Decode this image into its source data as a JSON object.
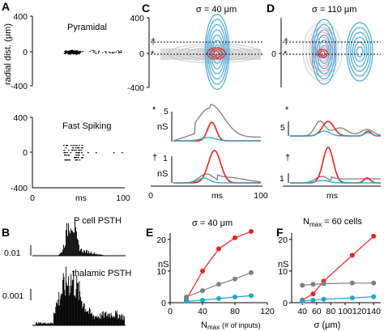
{
  "panels": {
    "A": {
      "letter": "A",
      "title_top": "Pyramidal",
      "title_bottom": "Fast Spiking",
      "ylabel": "radial dist.  (μm)",
      "yticks": [
        "400",
        "0",
        "-400"
      ],
      "xticks": [
        "0",
        "100"
      ],
      "xlabel": "ms"
    },
    "B": {
      "letter": "B",
      "label_top": "P cell PSTH",
      "label_bottom": "thalamic PSTH",
      "scale_top": "0.01",
      "scale_bottom": "0.001"
    },
    "C": {
      "letter": "C",
      "title": "σ = 40 μm",
      "yticks": [
        "400",
        "0",
        "-400"
      ],
      "markers": [
        "†",
        "*"
      ],
      "nS_label": "nS",
      "row2_tick": "5",
      "row3_tick": "1",
      "xticks": [
        "0",
        "100"
      ],
      "xlabel": "ms"
    },
    "D": {
      "letter": "D",
      "title": "σ = 110 μm",
      "yticks": [
        "0"
      ],
      "markers": [
        "†",
        "*"
      ],
      "row2_tick": "5",
      "row3_tick": "1",
      "xlabel": "ms"
    },
    "E": {
      "letter": "E",
      "title": "σ = 40 μm",
      "ylabel": "nS",
      "xlabel": "N",
      "xlabel_sub": "max",
      "xlabel_note": "(# of inputs)"
    },
    "F": {
      "letter": "F",
      "title": "N",
      "title_sub": "max",
      "title_rest": " = 60 cells",
      "ylabel": "nS",
      "xlabel": "σ (μm)"
    }
  },
  "colors": {
    "red": "#e8251f",
    "gray": "#7f7f7f",
    "cyan": "#1fa8c9",
    "contour_blue": "#4aa9d9",
    "contour_pink": "#e8a3b3"
  },
  "chart_data": [
    {
      "type": "line",
      "panel": "E",
      "title": "σ = 40 μm",
      "xlabel": "N max (# of inputs)",
      "ylabel": "nS",
      "x": [
        20,
        40,
        60,
        80,
        100
      ],
      "xlim": [
        0,
        120
      ],
      "ylim": [
        0,
        22
      ],
      "xticks": [
        0,
        40,
        80,
        120
      ],
      "yticks": [
        0,
        10,
        20
      ],
      "series": [
        {
          "color": "red",
          "values": [
            1,
            10,
            17,
            20.5,
            22.5
          ]
        },
        {
          "color": "gray",
          "values": [
            1.8,
            3.8,
            5.8,
            7.5,
            9.5
          ]
        },
        {
          "color": "cyan",
          "values": [
            0.4,
            0.8,
            1.3,
            1.8,
            2.2
          ]
        }
      ]
    },
    {
      "type": "line",
      "panel": "F",
      "title": "N max = 60 cells",
      "xlabel": "σ (μm)",
      "ylabel": "nS",
      "x": [
        40,
        55,
        70,
        110,
        140
      ],
      "xlim": [
        25,
        150
      ],
      "ylim": [
        0,
        22
      ],
      "xticks": [
        40,
        60,
        80,
        100,
        120,
        140
      ],
      "yticks": [
        0,
        10,
        20
      ],
      "series": [
        {
          "color": "red",
          "values": [
            0.8,
            2.8,
            6.8,
            15,
            21
          ]
        },
        {
          "color": "gray",
          "values": [
            5.5,
            5.8,
            6,
            6.2,
            6.2
          ]
        },
        {
          "color": "cyan",
          "values": [
            0.5,
            0.8,
            1.1,
            1.5,
            1.9
          ]
        }
      ]
    }
  ]
}
